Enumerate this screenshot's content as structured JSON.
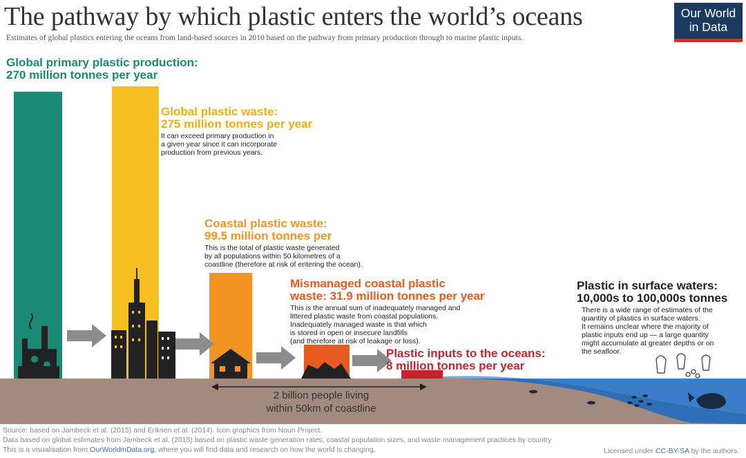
{
  "header": {
    "title": "The pathway by which plastic enters the world’s oceans",
    "subtitle": "Estimates of global plastics entering the oceans from land-based sources in 2010 based on the pathway from primary production through to marine plastic inputs.",
    "logo_line1": "Our World",
    "logo_line2": "in Data"
  },
  "colors": {
    "primary_production": "#1a8a76",
    "global_waste": "#f5bf1f",
    "coastal_waste": "#f29422",
    "mismanaged": "#e85b1e",
    "ocean_inputs": "#c4242e",
    "surface_waters": "#222222",
    "ocean": "#2e6fb8",
    "ground": "#a28b7e",
    "arrow": "#8c8c8c"
  },
  "labels": {
    "production": {
      "heading": "Global primary plastic production:",
      "value": "270 million tonnes per year"
    },
    "global_waste": {
      "heading": "Global plastic waste:",
      "value": "275 million tonnes per year",
      "desc": [
        "It can exceed primary production in",
        "a given year since it can incorporate",
        "production from previous years."
      ]
    },
    "coastal_waste": {
      "heading": "Coastal plastic waste:",
      "value": "99.5 million tonnes per",
      "desc": [
        "This is the total of plastic waste generated",
        "by all populations within 50 kilometres of a",
        "coastline (therefore at risk of entering the ocean)."
      ]
    },
    "mismanaged": {
      "heading": "Mismanaged coastal plastic",
      "value": "waste: 31.9 million tonnes per year",
      "desc": [
        "This is the annual sum of inadequately managed and",
        "littered plastic waste from coastal populations.",
        "Inadequately managed waste is that which",
        "is stored in open or insecure landfills",
        "(and therefore at risk of leakage or loss)."
      ]
    },
    "ocean_inputs": {
      "heading": "Plastic inputs to the oceans:",
      "value": "8 million tonnes per year"
    },
    "surface": {
      "heading": "Plastic in surface waters:",
      "value": "10,000s to 100,000s tonnes",
      "desc": [
        "There is a wide range of estimates of the",
        "quantity of plastics in surface waters.",
        "It remains unclear where the majority of",
        "plastic inputs end up — a large quantity",
        "might accumulate at greater depths or on",
        "the seafloor."
      ]
    }
  },
  "people_note": [
    "2 billion people living",
    "within 50km of coastline"
  ],
  "footer": {
    "source": "Source: based on Jambeck et al. (2015) and Eriksen et al. (2014). Icon graphics from Noun Project.",
    "data": "Data based on global estimates from Jambeck et al. (2015) based on plastic waste generation rates, coastal population sizes, and waste management practices by country",
    "visual_prefix": "This is a visualisation from ",
    "visual_link": "OurWorldinData.org",
    "visual_suffix": ", where you will find data and research on how the world is changing.",
    "license_prefix": "Licensed under ",
    "license_link": "CC-BY-SA",
    "license_suffix": " by the authors."
  },
  "chart_data": {
    "type": "bar",
    "title": "The pathway by which plastic enters the world’s oceans",
    "unit": "million tonnes per year",
    "categories": [
      "Global primary plastic production",
      "Global plastic waste",
      "Coastal plastic waste",
      "Mismanaged coastal plastic waste",
      "Plastic inputs to the oceans"
    ],
    "values": [
      270,
      275,
      99.5,
      31.9,
      8
    ],
    "surface_waters": "10,000s to 100,000s tonnes"
  }
}
